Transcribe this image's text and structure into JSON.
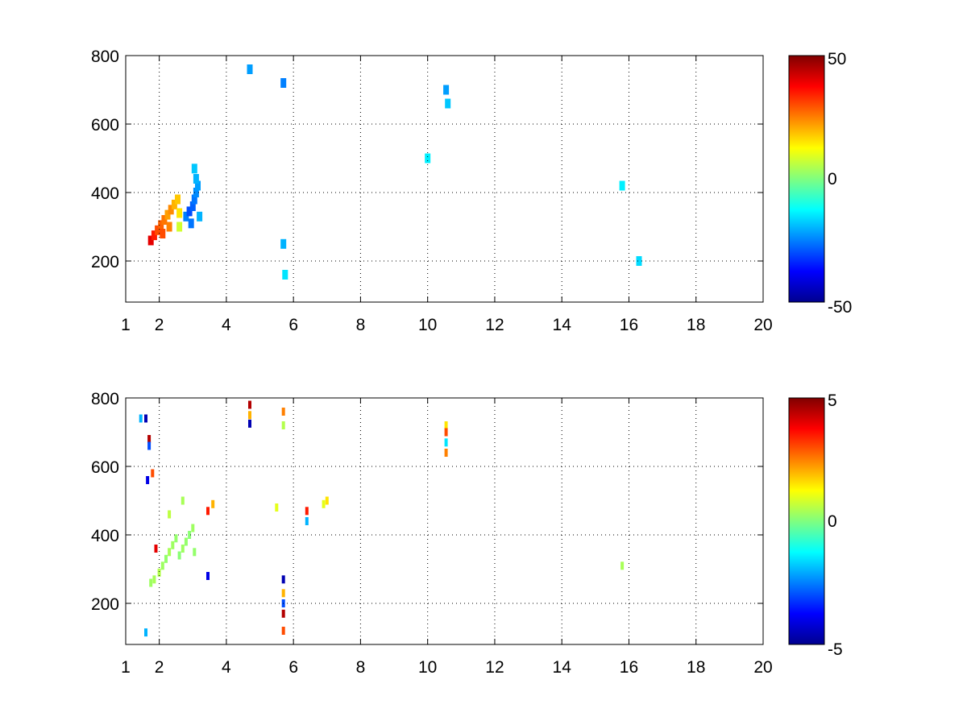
{
  "chart_data": [
    {
      "type": "heatmap",
      "title": "",
      "xlabel": "",
      "ylabel": "",
      "xlim": [
        1,
        20
      ],
      "ylim": [
        80,
        800
      ],
      "xticks": [
        {
          "v": 1,
          "label": "1"
        },
        {
          "v": 2,
          "label": "2"
        },
        {
          "v": 4,
          "label": "4"
        },
        {
          "v": 6,
          "label": "6"
        },
        {
          "v": 8,
          "label": "8"
        },
        {
          "v": 10,
          "label": "10"
        },
        {
          "v": 12,
          "label": "12"
        },
        {
          "v": 14,
          "label": "14"
        },
        {
          "v": 16,
          "label": "16"
        },
        {
          "v": 18,
          "label": "18"
        },
        {
          "v": 20,
          "label": "20"
        }
      ],
      "yticks": [
        {
          "v": 200,
          "label": "200"
        },
        {
          "v": 400,
          "label": "400"
        },
        {
          "v": 600,
          "label": "600"
        },
        {
          "v": 800,
          "label": "800"
        }
      ],
      "grid": true,
      "colormap": "jet",
      "clim": [
        -50,
        50
      ],
      "colorbar_ticks": [
        {
          "v": 50,
          "label": "50"
        },
        {
          "v": 0,
          "label": "0"
        },
        {
          "v": -50,
          "label": "-50"
        }
      ],
      "points": [
        {
          "x": 1.75,
          "y": 260,
          "v": 40
        },
        {
          "x": 1.85,
          "y": 275,
          "v": 35
        },
        {
          "x": 1.95,
          "y": 290,
          "v": 30
        },
        {
          "x": 2.05,
          "y": 305,
          "v": 28
        },
        {
          "x": 2.15,
          "y": 320,
          "v": 26
        },
        {
          "x": 2.25,
          "y": 335,
          "v": 22
        },
        {
          "x": 2.35,
          "y": 350,
          "v": 24
        },
        {
          "x": 2.45,
          "y": 365,
          "v": 20
        },
        {
          "x": 2.55,
          "y": 380,
          "v": 18
        },
        {
          "x": 2.3,
          "y": 300,
          "v": 25
        },
        {
          "x": 2.1,
          "y": 280,
          "v": 30
        },
        {
          "x": 2.6,
          "y": 340,
          "v": 15
        },
        {
          "x": 2.8,
          "y": 330,
          "v": -25
        },
        {
          "x": 2.9,
          "y": 345,
          "v": -30
        },
        {
          "x": 3.0,
          "y": 360,
          "v": -28
        },
        {
          "x": 3.05,
          "y": 380,
          "v": -26
        },
        {
          "x": 3.1,
          "y": 400,
          "v": -24
        },
        {
          "x": 3.15,
          "y": 420,
          "v": -22
        },
        {
          "x": 3.1,
          "y": 440,
          "v": -20
        },
        {
          "x": 3.05,
          "y": 470,
          "v": -18
        },
        {
          "x": 2.95,
          "y": 310,
          "v": -26
        },
        {
          "x": 3.2,
          "y": 330,
          "v": -20
        },
        {
          "x": 5.7,
          "y": 250,
          "v": -20
        },
        {
          "x": 5.75,
          "y": 160,
          "v": -15
        },
        {
          "x": 5.7,
          "y": 720,
          "v": -25
        },
        {
          "x": 4.7,
          "y": 760,
          "v": -22
        },
        {
          "x": 10.55,
          "y": 700,
          "v": -22
        },
        {
          "x": 10.6,
          "y": 660,
          "v": -18
        },
        {
          "x": 10.0,
          "y": 500,
          "v": -14
        },
        {
          "x": 15.8,
          "y": 420,
          "v": -14
        },
        {
          "x": 16.3,
          "y": 200,
          "v": -16
        },
        {
          "x": 2.6,
          "y": 300,
          "v": 8
        }
      ]
    },
    {
      "type": "heatmap",
      "title": "",
      "xlabel": "",
      "ylabel": "",
      "xlim": [
        1,
        20
      ],
      "ylim": [
        80,
        800
      ],
      "xticks": [
        {
          "v": 1,
          "label": "1"
        },
        {
          "v": 2,
          "label": "2"
        },
        {
          "v": 4,
          "label": "4"
        },
        {
          "v": 6,
          "label": "6"
        },
        {
          "v": 8,
          "label": "8"
        },
        {
          "v": 10,
          "label": "10"
        },
        {
          "v": 12,
          "label": "12"
        },
        {
          "v": 14,
          "label": "14"
        },
        {
          "v": 16,
          "label": "16"
        },
        {
          "v": 18,
          "label": "18"
        },
        {
          "v": 20,
          "label": "20"
        }
      ],
      "yticks": [
        {
          "v": 200,
          "label": "200"
        },
        {
          "v": 400,
          "label": "400"
        },
        {
          "v": 600,
          "label": "600"
        },
        {
          "v": 800,
          "label": "800"
        }
      ],
      "grid": true,
      "colormap": "jet",
      "clim": [
        -5,
        5
      ],
      "colorbar_ticks": [
        {
          "v": 5,
          "label": "5"
        },
        {
          "v": 0,
          "label": "0"
        },
        {
          "v": -5,
          "label": "-5"
        }
      ],
      "points": [
        {
          "x": 1.75,
          "y": 260,
          "v": 0.3
        },
        {
          "x": 1.85,
          "y": 270,
          "v": 0.4
        },
        {
          "x": 2.0,
          "y": 290,
          "v": 0.5
        },
        {
          "x": 2.1,
          "y": 310,
          "v": 0.3
        },
        {
          "x": 2.2,
          "y": 330,
          "v": 0.2
        },
        {
          "x": 2.3,
          "y": 350,
          "v": 0.4
        },
        {
          "x": 2.4,
          "y": 370,
          "v": 0.3
        },
        {
          "x": 2.5,
          "y": 390,
          "v": 0.2
        },
        {
          "x": 2.6,
          "y": 340,
          "v": 0.1
        },
        {
          "x": 2.7,
          "y": 360,
          "v": 0.3
        },
        {
          "x": 2.8,
          "y": 380,
          "v": 0.2
        },
        {
          "x": 2.9,
          "y": 400,
          "v": 0.1
        },
        {
          "x": 3.0,
          "y": 420,
          "v": 0.3
        },
        {
          "x": 3.05,
          "y": 350,
          "v": 0.2
        },
        {
          "x": 2.3,
          "y": 460,
          "v": 0.6
        },
        {
          "x": 2.7,
          "y": 500,
          "v": 0.4
        },
        {
          "x": 1.7,
          "y": 680,
          "v": 4.5
        },
        {
          "x": 1.7,
          "y": 660,
          "v": -3
        },
        {
          "x": 1.65,
          "y": 560,
          "v": -4
        },
        {
          "x": 1.8,
          "y": 580,
          "v": 3
        },
        {
          "x": 1.45,
          "y": 740,
          "v": -2
        },
        {
          "x": 1.6,
          "y": 740,
          "v": -4.5
        },
        {
          "x": 1.9,
          "y": 360,
          "v": 4
        },
        {
          "x": 3.45,
          "y": 470,
          "v": 3.5
        },
        {
          "x": 3.45,
          "y": 280,
          "v": -4
        },
        {
          "x": 3.6,
          "y": 490,
          "v": 2
        },
        {
          "x": 4.7,
          "y": 780,
          "v": 4.5
        },
        {
          "x": 4.7,
          "y": 750,
          "v": 2
        },
        {
          "x": 4.7,
          "y": 725,
          "v": -4.5
        },
        {
          "x": 5.7,
          "y": 760,
          "v": 2.5
        },
        {
          "x": 5.7,
          "y": 720,
          "v": 0.5
        },
        {
          "x": 5.7,
          "y": 270,
          "v": -4.5
        },
        {
          "x": 5.7,
          "y": 230,
          "v": 2
        },
        {
          "x": 5.7,
          "y": 200,
          "v": -3
        },
        {
          "x": 5.7,
          "y": 170,
          "v": 4.5
        },
        {
          "x": 5.7,
          "y": 120,
          "v": 3
        },
        {
          "x": 6.4,
          "y": 470,
          "v": 3.5
        },
        {
          "x": 6.4,
          "y": 440,
          "v": -2
        },
        {
          "x": 6.9,
          "y": 490,
          "v": 1
        },
        {
          "x": 7.0,
          "y": 500,
          "v": 1.5
        },
        {
          "x": 10.55,
          "y": 720,
          "v": 1.5
        },
        {
          "x": 10.55,
          "y": 700,
          "v": 3
        },
        {
          "x": 10.55,
          "y": 670,
          "v": -1.5
        },
        {
          "x": 10.55,
          "y": 640,
          "v": 2.5
        },
        {
          "x": 15.8,
          "y": 310,
          "v": 0.4
        },
        {
          "x": 1.6,
          "y": 115,
          "v": -2
        },
        {
          "x": 5.5,
          "y": 480,
          "v": 1
        }
      ]
    }
  ]
}
